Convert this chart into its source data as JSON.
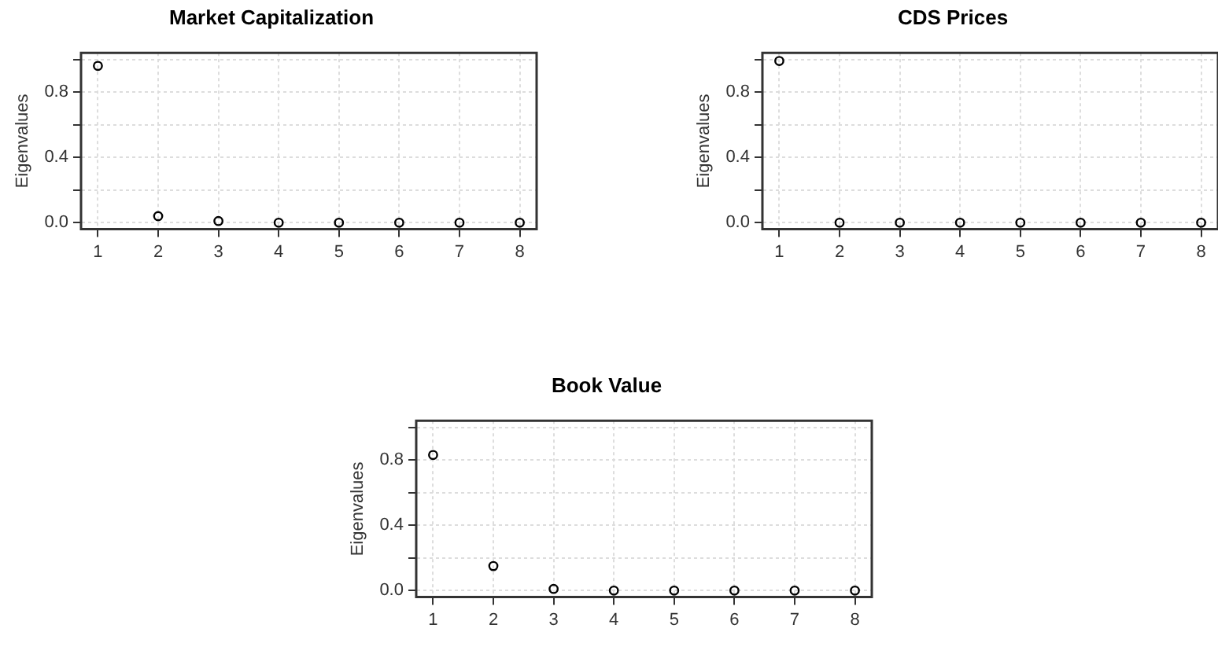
{
  "chart_data": [
    {
      "type": "scatter",
      "title": "Market Capitalization",
      "ylabel": "Eigenvalues",
      "x": [
        1,
        2,
        3,
        4,
        5,
        6,
        7,
        8
      ],
      "series": [
        {
          "color": "#000000",
          "values": [
            0.96,
            0.04,
            0.01,
            0,
            0,
            0,
            0,
            0
          ]
        }
      ],
      "xlim": [
        0.72,
        8.28
      ],
      "xticks": [
        1,
        2,
        3,
        4,
        5,
        6,
        7,
        8
      ],
      "ylim": [
        -0.04,
        1.04
      ],
      "yticks": [
        {
          "value": 0,
          "label": "0.0"
        },
        {
          "value": 0.2,
          "label": null
        },
        {
          "value": 0.4,
          "label": "0.4"
        },
        {
          "value": 0.6,
          "label": null
        },
        {
          "value": 0.8,
          "label": "0.8"
        },
        {
          "value": 1,
          "label": null
        }
      ],
      "grid": true,
      "marker": "circle"
    },
    {
      "type": "scatter",
      "title": "CDS Prices",
      "ylabel": "Eigenvalues",
      "x": [
        1,
        2,
        3,
        4,
        5,
        6,
        7,
        8
      ],
      "series": [
        {
          "color": "#000000",
          "values": [
            0.99,
            0,
            0,
            0,
            0,
            0,
            0,
            0
          ]
        }
      ],
      "xlim": [
        0.72,
        8.28
      ],
      "xticks": [
        1,
        2,
        3,
        4,
        5,
        6,
        7,
        8
      ],
      "ylim": [
        -0.04,
        1.04
      ],
      "yticks": [
        {
          "value": 0,
          "label": "0.0"
        },
        {
          "value": 0.2,
          "label": null
        },
        {
          "value": 0.4,
          "label": "0.4"
        },
        {
          "value": 0.6,
          "label": null
        },
        {
          "value": 0.8,
          "label": "0.8"
        },
        {
          "value": 1,
          "label": null
        }
      ],
      "grid": true,
      "marker": "circle"
    },
    {
      "type": "scatter",
      "title": "Book Value",
      "ylabel": "Eigenvalues",
      "x": [
        1,
        2,
        3,
        4,
        5,
        6,
        7,
        8
      ],
      "series": [
        {
          "color": "#000000",
          "values": [
            0.83,
            0.15,
            0.01,
            0,
            0,
            0,
            0,
            0
          ]
        }
      ],
      "xlim": [
        0.72,
        8.28
      ],
      "xticks": [
        1,
        2,
        3,
        4,
        5,
        6,
        7,
        8
      ],
      "ylim": [
        -0.04,
        1.04
      ],
      "yticks": [
        {
          "value": 0,
          "label": "0.0"
        },
        {
          "value": 0.2,
          "label": null
        },
        {
          "value": 0.4,
          "label": "0.4"
        },
        {
          "value": 0.6,
          "label": null
        },
        {
          "value": 0.8,
          "label": "0.8"
        },
        {
          "value": 1,
          "label": null
        }
      ],
      "grid": true,
      "marker": "circle"
    }
  ]
}
